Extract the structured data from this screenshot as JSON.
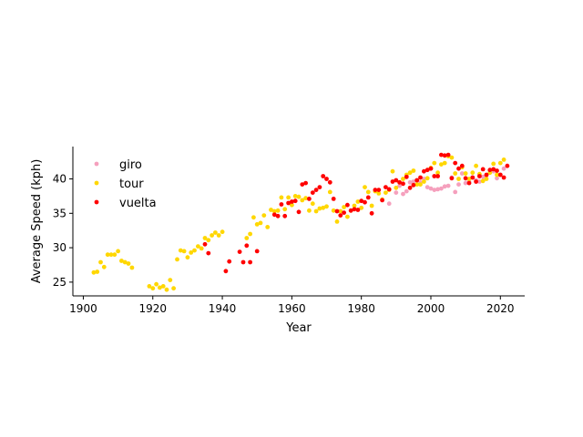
{
  "chart_data": {
    "type": "scatter",
    "xlabel": "Year",
    "ylabel": "Average Speed (kph)",
    "xlim": [
      1897,
      2027
    ],
    "ylim": [
      23.0,
      44.7
    ],
    "xticks": [
      1900,
      1920,
      1940,
      1960,
      1980,
      2000,
      2020
    ],
    "yticks": [
      25,
      30,
      35,
      40
    ],
    "grid": false,
    "legend_position": "top-left",
    "series": [
      {
        "name": "giro",
        "color": "#f5a0bd",
        "points": [
          [
            1988,
            36.4
          ],
          [
            1990,
            38.0
          ],
          [
            1991,
            39.0
          ],
          [
            1992,
            37.8
          ],
          [
            1993,
            38.2
          ],
          [
            1994,
            39.5
          ],
          [
            1995,
            39.6
          ],
          [
            1996,
            39.8
          ],
          [
            1997,
            39.5
          ],
          [
            1998,
            40.0
          ],
          [
            1999,
            38.8
          ],
          [
            2000,
            38.6
          ],
          [
            2001,
            38.4
          ],
          [
            2002,
            38.5
          ],
          [
            2003,
            38.6
          ],
          [
            2004,
            38.9
          ],
          [
            2005,
            39.0
          ],
          [
            2006,
            40.2
          ],
          [
            2007,
            38.1
          ],
          [
            2008,
            39.2
          ],
          [
            2009,
            40.8
          ],
          [
            2010,
            39.4
          ],
          [
            2011,
            39.6
          ],
          [
            2012,
            40.2
          ],
          [
            2013,
            39.8
          ],
          [
            2014,
            39.6
          ],
          [
            2015,
            40.3
          ],
          [
            2016,
            40.5
          ],
          [
            2017,
            40.9
          ],
          [
            2018,
            41.1
          ],
          [
            2019,
            40.1
          ],
          [
            2020,
            40.6
          ],
          [
            2021,
            41.5
          ]
        ]
      },
      {
        "name": "tour",
        "color": "#ffd700",
        "points": [
          [
            1903,
            26.4
          ],
          [
            1904,
            26.5
          ],
          [
            1905,
            27.9
          ],
          [
            1906,
            27.2
          ],
          [
            1907,
            29.0
          ],
          [
            1908,
            29.0
          ],
          [
            1909,
            29.0
          ],
          [
            1910,
            29.5
          ],
          [
            1911,
            28.1
          ],
          [
            1912,
            27.9
          ],
          [
            1913,
            27.7
          ],
          [
            1914,
            27.1
          ],
          [
            1919,
            24.4
          ],
          [
            1920,
            24.1
          ],
          [
            1921,
            24.7
          ],
          [
            1922,
            24.2
          ],
          [
            1923,
            24.4
          ],
          [
            1924,
            23.9
          ],
          [
            1925,
            25.3
          ],
          [
            1926,
            24.1
          ],
          [
            1927,
            28.3
          ],
          [
            1928,
            29.6
          ],
          [
            1929,
            29.5
          ],
          [
            1930,
            28.6
          ],
          [
            1931,
            29.3
          ],
          [
            1932,
            29.6
          ],
          [
            1933,
            30.2
          ],
          [
            1934,
            29.9
          ],
          [
            1935,
            31.4
          ],
          [
            1936,
            31.1
          ],
          [
            1937,
            31.8
          ],
          [
            1938,
            32.2
          ],
          [
            1939,
            31.8
          ],
          [
            1940,
            32.3
          ],
          [
            1947,
            31.4
          ],
          [
            1948,
            32.0
          ],
          [
            1949,
            34.4
          ],
          [
            1950,
            33.4
          ],
          [
            1951,
            33.6
          ],
          [
            1952,
            34.7
          ],
          [
            1953,
            33.0
          ],
          [
            1954,
            35.5
          ],
          [
            1955,
            35.3
          ],
          [
            1956,
            35.4
          ],
          [
            1957,
            37.3
          ],
          [
            1958,
            35.6
          ],
          [
            1959,
            37.3
          ],
          [
            1960,
            36.2
          ],
          [
            1961,
            37.5
          ],
          [
            1962,
            37.4
          ],
          [
            1963,
            36.9
          ],
          [
            1964,
            37.2
          ],
          [
            1965,
            35.4
          ],
          [
            1966,
            36.4
          ],
          [
            1967,
            35.3
          ],
          [
            1968,
            35.7
          ],
          [
            1969,
            35.8
          ],
          [
            1970,
            36.0
          ],
          [
            1971,
            38.1
          ],
          [
            1972,
            35.4
          ],
          [
            1973,
            33.8
          ],
          [
            1974,
            35.3
          ],
          [
            1975,
            35.9
          ],
          [
            1976,
            34.5
          ],
          [
            1977,
            35.4
          ],
          [
            1978,
            36.1
          ],
          [
            1979,
            36.7
          ],
          [
            1980,
            35.8
          ],
          [
            1981,
            38.8
          ],
          [
            1982,
            38.1
          ],
          [
            1983,
            36.1
          ],
          [
            1984,
            38.2
          ],
          [
            1985,
            37.9
          ],
          [
            1986,
            37.0
          ],
          [
            1987,
            38.0
          ],
          [
            1988,
            38.4
          ],
          [
            1989,
            41.1
          ],
          [
            1990,
            38.7
          ],
          [
            1991,
            39.5
          ],
          [
            1992,
            40.0
          ],
          [
            1993,
            40.6
          ],
          [
            1994,
            40.9
          ],
          [
            1995,
            41.2
          ],
          [
            1996,
            39.2
          ],
          [
            1997,
            39.2
          ],
          [
            1998,
            39.6
          ],
          [
            1999,
            40.1
          ],
          [
            2000,
            41.6
          ],
          [
            2001,
            42.3
          ],
          [
            2002,
            40.9
          ],
          [
            2003,
            42.1
          ],
          [
            2004,
            42.3
          ],
          [
            2005,
            43.3
          ],
          [
            2006,
            43.1
          ],
          [
            2007,
            40.8
          ],
          [
            2008,
            40.0
          ],
          [
            2009,
            41.7
          ],
          [
            2010,
            40.8
          ],
          [
            2011,
            40.0
          ],
          [
            2012,
            40.9
          ],
          [
            2013,
            41.9
          ],
          [
            2014,
            40.7
          ],
          [
            2015,
            39.7
          ],
          [
            2016,
            40.0
          ],
          [
            2017,
            40.9
          ],
          [
            2018,
            42.2
          ],
          [
            2019,
            40.6
          ],
          [
            2020,
            42.3
          ],
          [
            2021,
            42.8
          ]
        ]
      },
      {
        "name": "vuelta",
        "color": "#ff0000",
        "points": [
          [
            1935,
            30.5
          ],
          [
            1936,
            29.2
          ],
          [
            1941,
            26.6
          ],
          [
            1942,
            28.0
          ],
          [
            1945,
            29.4
          ],
          [
            1946,
            27.9
          ],
          [
            1947,
            30.3
          ],
          [
            1948,
            27.9
          ],
          [
            1950,
            29.5
          ],
          [
            1955,
            34.8
          ],
          [
            1956,
            34.6
          ],
          [
            1957,
            36.3
          ],
          [
            1958,
            34.6
          ],
          [
            1959,
            36.5
          ],
          [
            1960,
            36.7
          ],
          [
            1961,
            36.8
          ],
          [
            1962,
            35.2
          ],
          [
            1963,
            39.2
          ],
          [
            1964,
            39.4
          ],
          [
            1965,
            37.1
          ],
          [
            1966,
            38.0
          ],
          [
            1967,
            38.4
          ],
          [
            1968,
            38.8
          ],
          [
            1969,
            40.4
          ],
          [
            1970,
            40.0
          ],
          [
            1971,
            39.5
          ],
          [
            1972,
            37.1
          ],
          [
            1973,
            35.3
          ],
          [
            1974,
            34.7
          ],
          [
            1975,
            35.1
          ],
          [
            1976,
            36.2
          ],
          [
            1977,
            35.4
          ],
          [
            1978,
            35.6
          ],
          [
            1979,
            35.5
          ],
          [
            1980,
            36.8
          ],
          [
            1981,
            36.6
          ],
          [
            1982,
            37.3
          ],
          [
            1983,
            35.0
          ],
          [
            1984,
            38.4
          ],
          [
            1985,
            38.4
          ],
          [
            1986,
            36.9
          ],
          [
            1987,
            38.8
          ],
          [
            1988,
            38.5
          ],
          [
            1989,
            39.6
          ],
          [
            1990,
            39.8
          ],
          [
            1991,
            39.5
          ],
          [
            1992,
            39.3
          ],
          [
            1993,
            40.3
          ],
          [
            1994,
            38.7
          ],
          [
            1995,
            39.1
          ],
          [
            1996,
            39.8
          ],
          [
            1997,
            40.2
          ],
          [
            1998,
            41.1
          ],
          [
            1999,
            41.3
          ],
          [
            2000,
            41.5
          ],
          [
            2001,
            40.4
          ],
          [
            2002,
            40.4
          ],
          [
            2003,
            43.5
          ],
          [
            2004,
            43.4
          ],
          [
            2005,
            43.5
          ],
          [
            2006,
            40.1
          ],
          [
            2007,
            42.3
          ],
          [
            2008,
            41.5
          ],
          [
            2009,
            41.9
          ],
          [
            2010,
            40.1
          ],
          [
            2011,
            39.4
          ],
          [
            2012,
            40.2
          ],
          [
            2013,
            39.6
          ],
          [
            2014,
            40.4
          ],
          [
            2015,
            41.4
          ],
          [
            2016,
            40.6
          ],
          [
            2017,
            41.3
          ],
          [
            2018,
            41.4
          ],
          [
            2019,
            41.2
          ],
          [
            2020,
            40.6
          ],
          [
            2021,
            40.2
          ],
          [
            2022,
            41.9
          ]
        ]
      }
    ]
  }
}
